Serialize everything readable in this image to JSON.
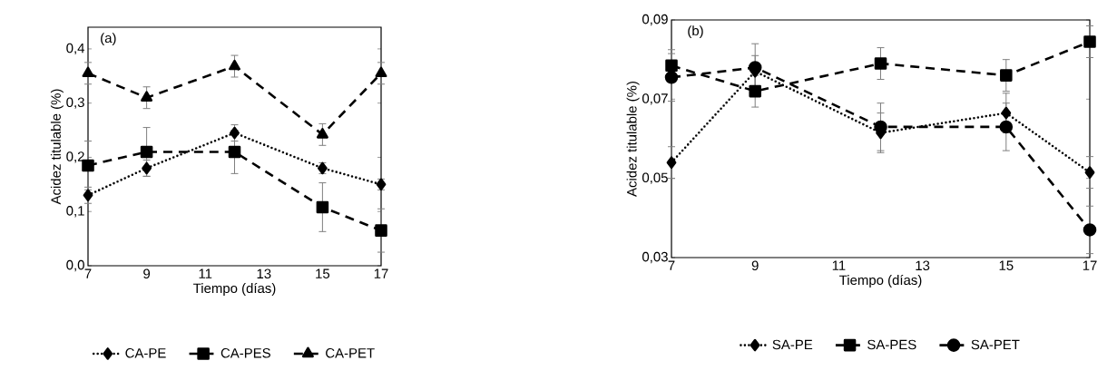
{
  "chart_data": [
    {
      "type": "line",
      "xlabel": "Tiempo (días)",
      "ylabel": "Acidez titulable (%)",
      "annotations": [
        "(a)"
      ],
      "x": [
        7,
        9,
        12,
        15,
        17
      ],
      "xlim": [
        7,
        17
      ],
      "xticks": [
        7,
        9,
        11,
        13,
        15,
        17
      ],
      "ylim": [
        0,
        0.44
      ],
      "yticks": [
        {
          "value": 0,
          "label": "0,0"
        },
        {
          "value": 0.1,
          "label": "0,1"
        },
        {
          "value": 0.2,
          "label": "0,2"
        },
        {
          "value": 0.3,
          "label": "0,3"
        },
        {
          "value": 0.4,
          "label": "0,4"
        }
      ],
      "legend": "bottom",
      "grid": false,
      "series": [
        {
          "name": "CA-PE",
          "color": "#000000",
          "marker": "diamond",
          "line_style": "dotted",
          "values": [
            0.13,
            0.18,
            0.245,
            0.18,
            0.15
          ],
          "errors": [
            0.015,
            0.015,
            0.015,
            0.01,
            0.01
          ]
        },
        {
          "name": "CA-PES",
          "color": "#000000",
          "marker": "square",
          "line_style": "dashed",
          "values": [
            0.185,
            0.21,
            0.21,
            0.108,
            0.065
          ],
          "errors": [
            0.045,
            0.045,
            0.04,
            0.045,
            0.04
          ]
        },
        {
          "name": "CA-PET",
          "color": "#000000",
          "marker": "triangle",
          "line_style": "dashed",
          "values": [
            0.355,
            0.31,
            0.368,
            0.242,
            0.355
          ],
          "errors": [
            0.02,
            0.02,
            0.02,
            0.02,
            0.02
          ]
        }
      ]
    },
    {
      "type": "line",
      "xlabel": "Tiempo (días)",
      "ylabel": "Acidez titulable (%)",
      "annotations": [
        "(b)"
      ],
      "x": [
        7,
        9,
        12,
        15,
        17
      ],
      "xlim": [
        7,
        17
      ],
      "xticks": [
        7,
        9,
        11,
        13,
        15,
        17
      ],
      "ylim": [
        0.03,
        0.09
      ],
      "yticks": [
        {
          "value": 0.03,
          "label": "0,03"
        },
        {
          "value": 0.05,
          "label": "0,05"
        },
        {
          "value": 0.07,
          "label": "0,07"
        },
        {
          "value": 0.09,
          "label": "0,09"
        }
      ],
      "legend": "bottom",
      "grid": false,
      "series": [
        {
          "name": "SA-PE",
          "color": "#000000",
          "marker": "diamond",
          "line_style": "dotted",
          "values": [
            0.054,
            0.077,
            0.0615,
            0.0665,
            0.0515
          ],
          "errors": [
            0.004,
            0.004,
            0.005,
            0.005,
            0.004
          ]
        },
        {
          "name": "SA-PES",
          "color": "#000000",
          "marker": "square",
          "line_style": "dashed",
          "values": [
            0.0785,
            0.072,
            0.079,
            0.076,
            0.0845
          ],
          "errors": [
            0.004,
            0.004,
            0.004,
            0.004,
            0.004
          ]
        },
        {
          "name": "SA-PET",
          "color": "#000000",
          "marker": "circle",
          "line_style": "dashed",
          "values": [
            0.0755,
            0.078,
            0.063,
            0.063,
            0.037
          ],
          "errors": [
            0.006,
            0.006,
            0.006,
            0.006,
            0.006
          ]
        }
      ]
    }
  ]
}
